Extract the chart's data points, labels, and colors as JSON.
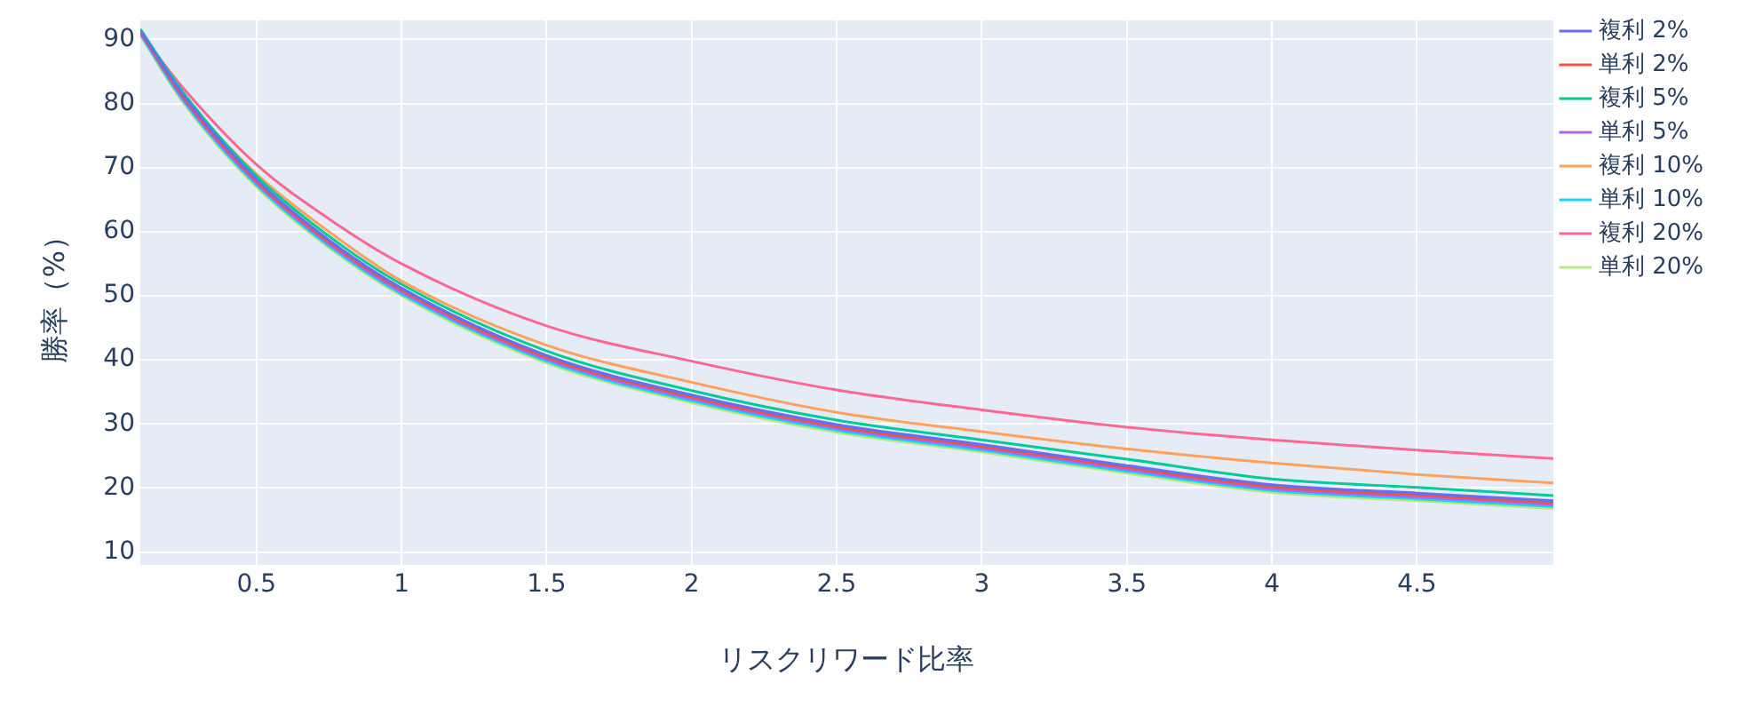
{
  "chart_data": {
    "type": "line",
    "xlabel": "リスクリワード比率",
    "ylabel": "勝率（%）",
    "x": [
      0.1,
      0.25,
      0.5,
      0.75,
      1,
      1.5,
      2,
      2.5,
      3,
      3.5,
      4,
      4.5,
      4.97
    ],
    "xlim": [
      0.1,
      4.97
    ],
    "xticks": [
      0.5,
      1,
      1.5,
      2,
      2.5,
      3,
      3.5,
      4,
      4.5
    ],
    "ylim": [
      8,
      93
    ],
    "yticks": [
      10,
      20,
      30,
      40,
      50,
      60,
      70,
      80,
      90
    ],
    "grid": true,
    "legend": "right",
    "marker": "none",
    "line_style": "solid",
    "series": [
      {
        "name": "複利 2%",
        "color": "#636efa",
        "values": [
          91.4,
          81.2,
          68.2,
          58.7,
          51.2,
          40.7,
          34.5,
          29.9,
          26.8,
          23.5,
          20.5,
          19.2,
          18
        ]
      },
      {
        "name": "単利 2%",
        "color": "#ef553b",
        "values": [
          91.2,
          80.9,
          67.9,
          58.4,
          50.9,
          40.4,
          34.2,
          29.6,
          26.5,
          23.2,
          20.2,
          18.9,
          17.7
        ]
      },
      {
        "name": "複利 5%",
        "color": "#00cc96",
        "values": [
          91.6,
          81.6,
          68.7,
          59.3,
          51.8,
          41.4,
          35.2,
          30.6,
          27.5,
          24.5,
          21.4,
          20.1,
          18.8
        ]
      },
      {
        "name": "単利 5%",
        "color": "#ab63fa",
        "values": [
          91,
          80.6,
          67.6,
          58.1,
          50.6,
          40.1,
          33.9,
          29.3,
          26.2,
          22.9,
          19.9,
          18.6,
          17.4
        ]
      },
      {
        "name": "複利 10%",
        "color": "#ffa15a",
        "values": [
          91,
          81.2,
          69,
          60,
          52.3,
          42.3,
          36.5,
          31.8,
          28.8,
          26.1,
          23.9,
          22.1,
          20.8
        ]
      },
      {
        "name": "単利 10%",
        "color": "#19d3f3",
        "values": [
          90.8,
          80.3,
          67.3,
          57.8,
          50.3,
          39.8,
          33.6,
          29,
          25.9,
          22.6,
          19.6,
          18.3,
          17.1
        ]
      },
      {
        "name": "複利 20%",
        "color": "#ff6692",
        "values": [
          91,
          82.3,
          70.5,
          62,
          55,
          45.3,
          39.8,
          35.3,
          32.2,
          29.5,
          27.5,
          25.9,
          24.6
        ]
      },
      {
        "name": "単利 20%",
        "color": "#b6e880",
        "values": [
          90.6,
          80,
          67,
          57.5,
          50,
          39.5,
          33.3,
          28.7,
          25.6,
          22.3,
          19.3,
          18,
          16.8
        ]
      }
    ]
  }
}
